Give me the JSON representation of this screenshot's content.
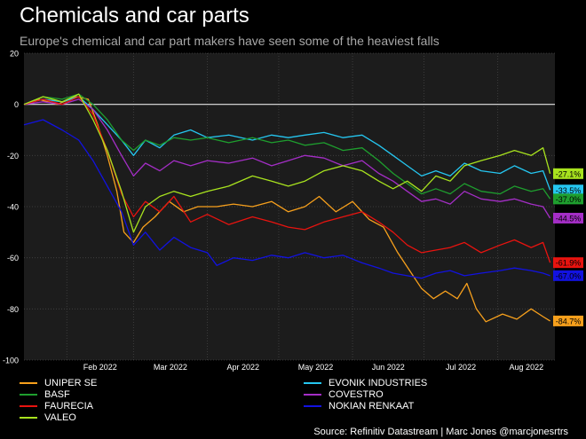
{
  "header": {
    "title": "Chemicals and car parts",
    "subtitle": "Europe's chemical and car part makers have seen some of the heaviest falls"
  },
  "source": "Source: Refinitiv Datastream | Marc Jones @marcjonesrtrs",
  "chart_data": {
    "type": "line",
    "title": "Chemicals and car parts",
    "subtitle": "Europe's chemical and car part makers have seen some of the heaviest falls",
    "xlabel": "",
    "ylabel": "",
    "ylim": [
      -100,
      20
    ],
    "yticks": [
      20,
      0,
      -20,
      -40,
      -60,
      -80,
      -100
    ],
    "xlim": [
      "2022-01-14",
      "2022-08-25"
    ],
    "xticks": [
      {
        "date": "2022-02-01",
        "label": "Feb 2022"
      },
      {
        "date": "2022-03-01",
        "label": "Mar 2022"
      },
      {
        "date": "2022-04-01",
        "label": "Apr 2022"
      },
      {
        "date": "2022-05-01",
        "label": "May 2022"
      },
      {
        "date": "2022-06-01",
        "label": "Jun 2022"
      },
      {
        "date": "2022-07-01",
        "label": "Jul 2022"
      },
      {
        "date": "2022-08-01",
        "label": "Aug 2022"
      }
    ],
    "reference_line": 0,
    "grid": true,
    "legend_position": "bottom",
    "series": [
      {
        "name": "UNIPER SE",
        "color": "#f7a01c",
        "end_label": "-84.7%",
        "points": [
          [
            "2022-01-14",
            0
          ],
          [
            "2022-01-20",
            2
          ],
          [
            "2022-01-28",
            0
          ],
          [
            "2022-02-05",
            3
          ],
          [
            "2022-02-10",
            2
          ],
          [
            "2022-02-14",
            -8
          ],
          [
            "2022-02-18",
            -20
          ],
          [
            "2022-02-22",
            -34
          ],
          [
            "2022-02-25",
            -50
          ],
          [
            "2022-03-01",
            -54
          ],
          [
            "2022-03-05",
            -48
          ],
          [
            "2022-03-10",
            -44
          ],
          [
            "2022-03-16",
            -38
          ],
          [
            "2022-03-22",
            -42
          ],
          [
            "2022-03-28",
            -40
          ],
          [
            "2022-04-05",
            -40
          ],
          [
            "2022-04-12",
            -39
          ],
          [
            "2022-04-20",
            -40
          ],
          [
            "2022-04-28",
            -38
          ],
          [
            "2022-05-05",
            -42
          ],
          [
            "2022-05-12",
            -40
          ],
          [
            "2022-05-18",
            -36
          ],
          [
            "2022-05-25",
            -42
          ],
          [
            "2022-06-01",
            -38
          ],
          [
            "2022-06-08",
            -45
          ],
          [
            "2022-06-14",
            -48
          ],
          [
            "2022-06-20",
            -58
          ],
          [
            "2022-06-25",
            -65
          ],
          [
            "2022-06-30",
            -72
          ],
          [
            "2022-07-05",
            -76
          ],
          [
            "2022-07-10",
            -73
          ],
          [
            "2022-07-15",
            -76
          ],
          [
            "2022-07-19",
            -70
          ],
          [
            "2022-07-23",
            -80
          ],
          [
            "2022-07-27",
            -85
          ],
          [
            "2022-08-03",
            -82
          ],
          [
            "2022-08-09",
            -84
          ],
          [
            "2022-08-15",
            -80
          ],
          [
            "2022-08-20",
            -83
          ],
          [
            "2022-08-23",
            -84.7
          ]
        ]
      },
      {
        "name": "EVONIK INDUSTRIES",
        "color": "#25c6f0",
        "end_label": "-33.5%",
        "points": [
          [
            "2022-01-14",
            0
          ],
          [
            "2022-01-22",
            2
          ],
          [
            "2022-01-30",
            1
          ],
          [
            "2022-02-06",
            3
          ],
          [
            "2022-02-12",
            -2
          ],
          [
            "2022-02-18",
            -8
          ],
          [
            "2022-02-24",
            -14
          ],
          [
            "2022-03-01",
            -20
          ],
          [
            "2022-03-06",
            -14
          ],
          [
            "2022-03-12",
            -17
          ],
          [
            "2022-03-18",
            -12
          ],
          [
            "2022-03-25",
            -10
          ],
          [
            "2022-04-01",
            -13
          ],
          [
            "2022-04-10",
            -12
          ],
          [
            "2022-04-20",
            -14
          ],
          [
            "2022-04-28",
            -12
          ],
          [
            "2022-05-05",
            -13
          ],
          [
            "2022-05-12",
            -12
          ],
          [
            "2022-05-20",
            -11
          ],
          [
            "2022-05-28",
            -13
          ],
          [
            "2022-06-05",
            -12
          ],
          [
            "2022-06-12",
            -16
          ],
          [
            "2022-06-18",
            -20
          ],
          [
            "2022-06-24",
            -24
          ],
          [
            "2022-06-30",
            -28
          ],
          [
            "2022-07-06",
            -26
          ],
          [
            "2022-07-12",
            -28
          ],
          [
            "2022-07-18",
            -23
          ],
          [
            "2022-07-25",
            -26
          ],
          [
            "2022-08-02",
            -27
          ],
          [
            "2022-08-08",
            -24
          ],
          [
            "2022-08-15",
            -27
          ],
          [
            "2022-08-20",
            -26
          ],
          [
            "2022-08-23",
            -33.5
          ]
        ]
      },
      {
        "name": "BASF",
        "color": "#1e9e2e",
        "end_label": "-37.0%",
        "points": [
          [
            "2022-01-14",
            0
          ],
          [
            "2022-01-22",
            3
          ],
          [
            "2022-01-30",
            2
          ],
          [
            "2022-02-06",
            4
          ],
          [
            "2022-02-12",
            0
          ],
          [
            "2022-02-18",
            -6
          ],
          [
            "2022-02-24",
            -14
          ],
          [
            "2022-03-01",
            -18
          ],
          [
            "2022-03-06",
            -14
          ],
          [
            "2022-03-12",
            -16
          ],
          [
            "2022-03-18",
            -13
          ],
          [
            "2022-03-25",
            -14
          ],
          [
            "2022-04-01",
            -13
          ],
          [
            "2022-04-10",
            -15
          ],
          [
            "2022-04-20",
            -13
          ],
          [
            "2022-04-28",
            -15
          ],
          [
            "2022-05-05",
            -14
          ],
          [
            "2022-05-12",
            -16
          ],
          [
            "2022-05-20",
            -15
          ],
          [
            "2022-05-28",
            -18
          ],
          [
            "2022-06-05",
            -17
          ],
          [
            "2022-06-12",
            -22
          ],
          [
            "2022-06-18",
            -27
          ],
          [
            "2022-06-24",
            -31
          ],
          [
            "2022-06-30",
            -35
          ],
          [
            "2022-07-06",
            -33
          ],
          [
            "2022-07-12",
            -35
          ],
          [
            "2022-07-18",
            -31
          ],
          [
            "2022-07-25",
            -34
          ],
          [
            "2022-08-02",
            -35
          ],
          [
            "2022-08-08",
            -32
          ],
          [
            "2022-08-15",
            -34
          ],
          [
            "2022-08-20",
            -33
          ],
          [
            "2022-08-23",
            -37.0
          ]
        ]
      },
      {
        "name": "COVESTRO",
        "color": "#a42ec6",
        "end_label": "-44.5%",
        "points": [
          [
            "2022-01-14",
            0
          ],
          [
            "2022-01-22",
            1
          ],
          [
            "2022-01-30",
            0
          ],
          [
            "2022-02-06",
            2
          ],
          [
            "2022-02-12",
            -2
          ],
          [
            "2022-02-18",
            -10
          ],
          [
            "2022-02-24",
            -20
          ],
          [
            "2022-03-01",
            -28
          ],
          [
            "2022-03-06",
            -23
          ],
          [
            "2022-03-12",
            -26
          ],
          [
            "2022-03-18",
            -22
          ],
          [
            "2022-03-25",
            -24
          ],
          [
            "2022-04-01",
            -22
          ],
          [
            "2022-04-10",
            -23
          ],
          [
            "2022-04-20",
            -21
          ],
          [
            "2022-04-28",
            -24
          ],
          [
            "2022-05-05",
            -22
          ],
          [
            "2022-05-12",
            -20
          ],
          [
            "2022-05-20",
            -21
          ],
          [
            "2022-05-28",
            -24
          ],
          [
            "2022-06-05",
            -22
          ],
          [
            "2022-06-12",
            -27
          ],
          [
            "2022-06-18",
            -30
          ],
          [
            "2022-06-24",
            -34
          ],
          [
            "2022-06-30",
            -38
          ],
          [
            "2022-07-06",
            -37
          ],
          [
            "2022-07-12",
            -39
          ],
          [
            "2022-07-18",
            -34
          ],
          [
            "2022-07-25",
            -37
          ],
          [
            "2022-08-02",
            -38
          ],
          [
            "2022-08-08",
            -37
          ],
          [
            "2022-08-15",
            -39
          ],
          [
            "2022-08-20",
            -40
          ],
          [
            "2022-08-23",
            -44.5
          ]
        ]
      },
      {
        "name": "FAURECIA",
        "color": "#e8130f",
        "end_label": "-61.9%",
        "points": [
          [
            "2022-01-14",
            0
          ],
          [
            "2022-01-22",
            2
          ],
          [
            "2022-01-30",
            0
          ],
          [
            "2022-02-06",
            3
          ],
          [
            "2022-02-12",
            -4
          ],
          [
            "2022-02-18",
            -18
          ],
          [
            "2022-02-24",
            -35
          ],
          [
            "2022-03-01",
            -44
          ],
          [
            "2022-03-06",
            -38
          ],
          [
            "2022-03-12",
            -42
          ],
          [
            "2022-03-18",
            -36
          ],
          [
            "2022-03-25",
            -46
          ],
          [
            "2022-04-01",
            -43
          ],
          [
            "2022-04-10",
            -47
          ],
          [
            "2022-04-20",
            -44
          ],
          [
            "2022-04-28",
            -46
          ],
          [
            "2022-05-05",
            -48
          ],
          [
            "2022-05-12",
            -49
          ],
          [
            "2022-05-20",
            -46
          ],
          [
            "2022-05-28",
            -44
          ],
          [
            "2022-06-05",
            -42
          ],
          [
            "2022-06-12",
            -46
          ],
          [
            "2022-06-18",
            -50
          ],
          [
            "2022-06-24",
            -55
          ],
          [
            "2022-06-30",
            -58
          ],
          [
            "2022-07-06",
            -57
          ],
          [
            "2022-07-12",
            -56
          ],
          [
            "2022-07-18",
            -54
          ],
          [
            "2022-07-25",
            -58
          ],
          [
            "2022-08-02",
            -55
          ],
          [
            "2022-08-08",
            -53
          ],
          [
            "2022-08-15",
            -56
          ],
          [
            "2022-08-20",
            -54
          ],
          [
            "2022-08-23",
            -61.9
          ]
        ]
      },
      {
        "name": "NOKIAN RENKAAT",
        "color": "#1212e0",
        "end_label": "-67.0%",
        "points": [
          [
            "2022-01-14",
            -8
          ],
          [
            "2022-01-22",
            -6
          ],
          [
            "2022-01-30",
            -10
          ],
          [
            "2022-02-06",
            -14
          ],
          [
            "2022-02-12",
            -22
          ],
          [
            "2022-02-18",
            -32
          ],
          [
            "2022-02-24",
            -42
          ],
          [
            "2022-03-01",
            -55
          ],
          [
            "2022-03-06",
            -50
          ],
          [
            "2022-03-12",
            -57
          ],
          [
            "2022-03-18",
            -52
          ],
          [
            "2022-03-25",
            -56
          ],
          [
            "2022-04-01",
            -58
          ],
          [
            "2022-04-05",
            -63
          ],
          [
            "2022-04-12",
            -60
          ],
          [
            "2022-04-20",
            -61
          ],
          [
            "2022-04-28",
            -59
          ],
          [
            "2022-05-05",
            -60
          ],
          [
            "2022-05-12",
            -58
          ],
          [
            "2022-05-20",
            -60
          ],
          [
            "2022-05-28",
            -59
          ],
          [
            "2022-06-05",
            -62
          ],
          [
            "2022-06-12",
            -64
          ],
          [
            "2022-06-18",
            -66
          ],
          [
            "2022-06-24",
            -67
          ],
          [
            "2022-06-30",
            -68
          ],
          [
            "2022-07-06",
            -66
          ],
          [
            "2022-07-12",
            -65
          ],
          [
            "2022-07-18",
            -67
          ],
          [
            "2022-07-25",
            -66
          ],
          [
            "2022-08-02",
            -65
          ],
          [
            "2022-08-08",
            -64
          ],
          [
            "2022-08-15",
            -65
          ],
          [
            "2022-08-20",
            -66
          ],
          [
            "2022-08-23",
            -67.0
          ]
        ]
      },
      {
        "name": "VALEO",
        "color": "#a8e31e",
        "end_label": "-27.1%",
        "points": [
          [
            "2022-01-14",
            0
          ],
          [
            "2022-01-22",
            3
          ],
          [
            "2022-01-30",
            1
          ],
          [
            "2022-02-06",
            4
          ],
          [
            "2022-02-12",
            -6
          ],
          [
            "2022-02-18",
            -18
          ],
          [
            "2022-02-24",
            -34
          ],
          [
            "2022-03-01",
            -50
          ],
          [
            "2022-03-06",
            -40
          ],
          [
            "2022-03-12",
            -36
          ],
          [
            "2022-03-18",
            -34
          ],
          [
            "2022-03-25",
            -36
          ],
          [
            "2022-04-01",
            -34
          ],
          [
            "2022-04-10",
            -32
          ],
          [
            "2022-04-20",
            -28
          ],
          [
            "2022-04-28",
            -30
          ],
          [
            "2022-05-05",
            -32
          ],
          [
            "2022-05-12",
            -30
          ],
          [
            "2022-05-20",
            -26
          ],
          [
            "2022-05-28",
            -24
          ],
          [
            "2022-06-05",
            -26
          ],
          [
            "2022-06-12",
            -30
          ],
          [
            "2022-06-18",
            -33
          ],
          [
            "2022-06-24",
            -30
          ],
          [
            "2022-06-30",
            -34
          ],
          [
            "2022-07-06",
            -28
          ],
          [
            "2022-07-12",
            -30
          ],
          [
            "2022-07-18",
            -24
          ],
          [
            "2022-07-25",
            -22
          ],
          [
            "2022-08-02",
            -20
          ],
          [
            "2022-08-08",
            -18
          ],
          [
            "2022-08-15",
            -20
          ],
          [
            "2022-08-20",
            -17
          ],
          [
            "2022-08-23",
            -27.1
          ]
        ]
      }
    ]
  }
}
